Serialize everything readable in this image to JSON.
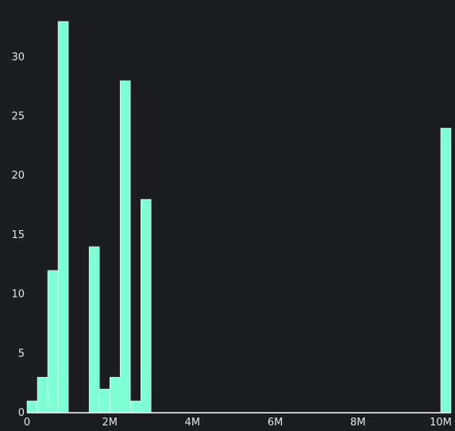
{
  "colors": {
    "background": "#1c1d20",
    "bar": "#7fffd4",
    "axis": "#ffffff",
    "tick_text": "#e4e4e4"
  },
  "chart_data": {
    "type": "bar",
    "title": "",
    "xlabel": "",
    "ylabel": "",
    "xlim": [
      0,
      10250000
    ],
    "ylim": [
      0,
      33
    ],
    "grid": false,
    "legend": "none",
    "x_ticks": [
      {
        "value": 0,
        "label": "0"
      },
      {
        "value": 2000000,
        "label": "2M"
      },
      {
        "value": 4000000,
        "label": "4M"
      },
      {
        "value": 6000000,
        "label": "6M"
      },
      {
        "value": 8000000,
        "label": "8M"
      },
      {
        "value": 10000000,
        "label": "10M"
      }
    ],
    "y_ticks": [
      {
        "value": 0,
        "label": "0"
      },
      {
        "value": 5,
        "label": "5"
      },
      {
        "value": 10,
        "label": "10"
      },
      {
        "value": 15,
        "label": "15"
      },
      {
        "value": 20,
        "label": "20"
      },
      {
        "value": 25,
        "label": "25"
      },
      {
        "value": 30,
        "label": "30"
      }
    ],
    "bin_width": 250000,
    "bins": [
      {
        "x0": 0,
        "x1": 250000,
        "count": 1
      },
      {
        "x0": 250000,
        "x1": 500000,
        "count": 3
      },
      {
        "x0": 500000,
        "x1": 750000,
        "count": 12
      },
      {
        "x0": 750000,
        "x1": 1000000,
        "count": 33
      },
      {
        "x0": 1500000,
        "x1": 1750000,
        "count": 14
      },
      {
        "x0": 1750000,
        "x1": 2000000,
        "count": 2
      },
      {
        "x0": 2000000,
        "x1": 2250000,
        "count": 3
      },
      {
        "x0": 2250000,
        "x1": 2500000,
        "count": 28
      },
      {
        "x0": 2500000,
        "x1": 2750000,
        "count": 1
      },
      {
        "x0": 2750000,
        "x1": 3000000,
        "count": 18
      },
      {
        "x0": 10000000,
        "x1": 10250000,
        "count": 24
      }
    ]
  }
}
